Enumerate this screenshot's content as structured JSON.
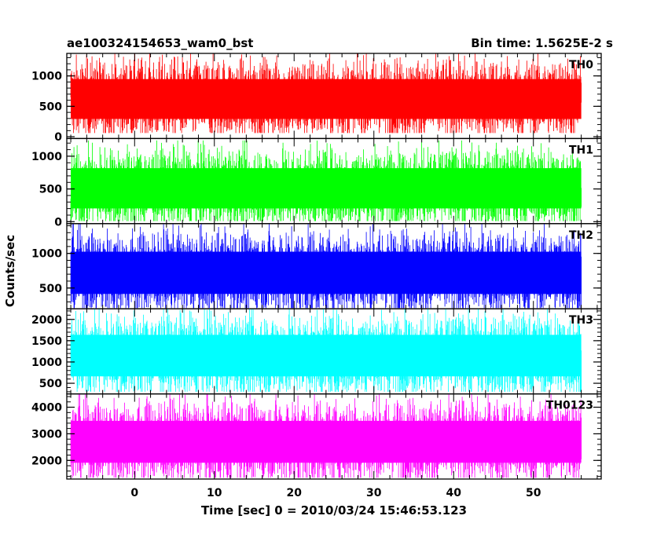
{
  "chart_data": {
    "type": "line",
    "title_left": "ae100324154653_wam0_bst",
    "title_right": "Bin time: 1.5625E-2 s",
    "xlabel": "Time [sec] 0 = 2010/03/24 15:46:53.123",
    "ylabel": "Counts/sec",
    "xlim": [
      -8.5,
      58.5
    ],
    "x_data_range": [
      -8.0,
      56.0
    ],
    "x_ticks": [
      0,
      10,
      20,
      30,
      40,
      50
    ],
    "x_tick_labels": [
      "0",
      "10",
      "20",
      "30",
      "40",
      "50"
    ],
    "panels": [
      {
        "label": "TH0",
        "color": "#ff0000",
        "ylim": [
          -30,
          1370
        ],
        "y_ticks": [
          0,
          500,
          1000
        ],
        "y_tick_labels": [
          "0",
          "500",
          "1000"
        ],
        "mean": 620,
        "range": [
          60,
          1370
        ]
      },
      {
        "label": "TH1",
        "color": "#00ff00",
        "ylim": [
          -30,
          1270
        ],
        "y_ticks": [
          0,
          500,
          1000
        ],
        "y_tick_labels": [
          "0",
          "500",
          "1000"
        ],
        "mean": 510,
        "range": [
          10,
          1240
        ]
      },
      {
        "label": "TH2",
        "color": "#0000ff",
        "ylim": [
          200,
          1430
        ],
        "y_ticks": [
          500,
          1000
        ],
        "y_tick_labels": [
          "500",
          "1000"
        ],
        "mean": 720,
        "range": [
          210,
          1430
        ]
      },
      {
        "label": "TH3",
        "color": "#00ffff",
        "ylim": [
          250,
          2250
        ],
        "y_ticks": [
          500,
          1000,
          1500,
          2000
        ],
        "y_tick_labels": [
          "500",
          "1000",
          "1500",
          "2000"
        ],
        "mean": 1150,
        "range": [
          300,
          2250
        ]
      },
      {
        "label": "TH0123",
        "color": "#ff00ff",
        "ylim": [
          1300,
          4500
        ],
        "y_ticks": [
          2000,
          3000,
          4000
        ],
        "y_tick_labels": [
          "2000",
          "3000",
          "4000"
        ],
        "mean": 2700,
        "range": [
          1350,
          4500
        ]
      }
    ]
  }
}
